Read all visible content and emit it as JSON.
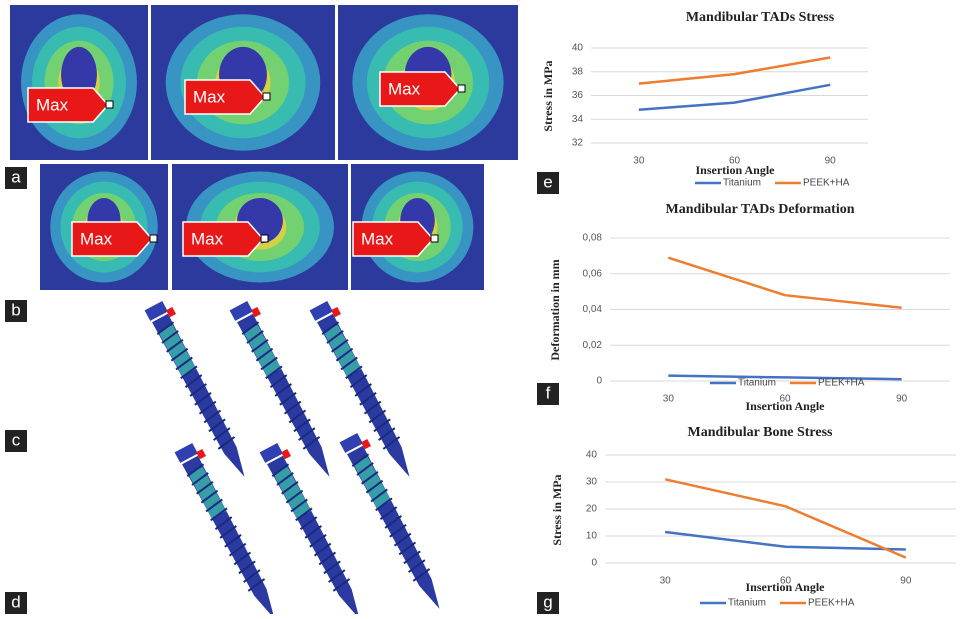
{
  "image_panels": {
    "labels": [
      "a",
      "b",
      "c",
      "d"
    ],
    "max_labels": [
      "Max",
      "Max",
      "Max",
      "Max",
      "Max",
      "Max"
    ]
  },
  "chart_data": [
    {
      "type": "line",
      "panel": "e",
      "title": "Mandibular TADs Stress",
      "x_label": "Insertion Angle",
      "y_label": "Stress in MPa",
      "categories": [
        "30",
        "60",
        "90"
      ],
      "series": [
        {
          "name": "Titanium",
          "color": "#4472c4",
          "values": [
            34.8,
            35.4,
            36.9
          ]
        },
        {
          "name": "PEEK+HA",
          "color": "#ed7d31",
          "values": [
            37.0,
            37.8,
            39.2
          ]
        }
      ],
      "ylim": [
        32,
        40
      ],
      "yticks": [
        32,
        34,
        36,
        38,
        40
      ],
      "grid": true,
      "legend": "bottom"
    },
    {
      "type": "line",
      "panel": "f",
      "title": "Mandibular TADs Deformation",
      "x_label": "Insertion Angle",
      "y_label": "Deformation in mm",
      "categories": [
        "30",
        "60",
        "90"
      ],
      "series": [
        {
          "name": "Titanium",
          "color": "#4472c4",
          "values": [
            0.003,
            0.002,
            0.001
          ]
        },
        {
          "name": "PEEK+HA",
          "color": "#ed7d31",
          "values": [
            0.069,
            0.048,
            0.041
          ]
        }
      ],
      "ylim": [
        0,
        0.08
      ],
      "yticks": [
        0,
        {
          "value": 0.02,
          "label": "0,02"
        },
        {
          "value": 0.04,
          "label": "0,04"
        },
        {
          "value": 0.06,
          "label": "0,06"
        },
        {
          "value": 0.08,
          "label": "0,08"
        }
      ],
      "grid": true,
      "legend": "bottom"
    },
    {
      "type": "line",
      "panel": "g",
      "title": "Mandibular  Bone Stress",
      "x_label": "Insertion Angle",
      "y_label": "Stress in MPa",
      "categories": [
        "30",
        "60",
        "90"
      ],
      "series": [
        {
          "name": "Titanium",
          "color": "#4472c4",
          "values": [
            11.5,
            6,
            5
          ]
        },
        {
          "name": "PEEK+HA",
          "color": "#ed7d31",
          "values": [
            31,
            21,
            2
          ]
        }
      ],
      "ylim": [
        0,
        40
      ],
      "yticks": [
        0,
        10,
        20,
        30,
        40
      ],
      "grid": true,
      "legend": "bottom"
    }
  ]
}
